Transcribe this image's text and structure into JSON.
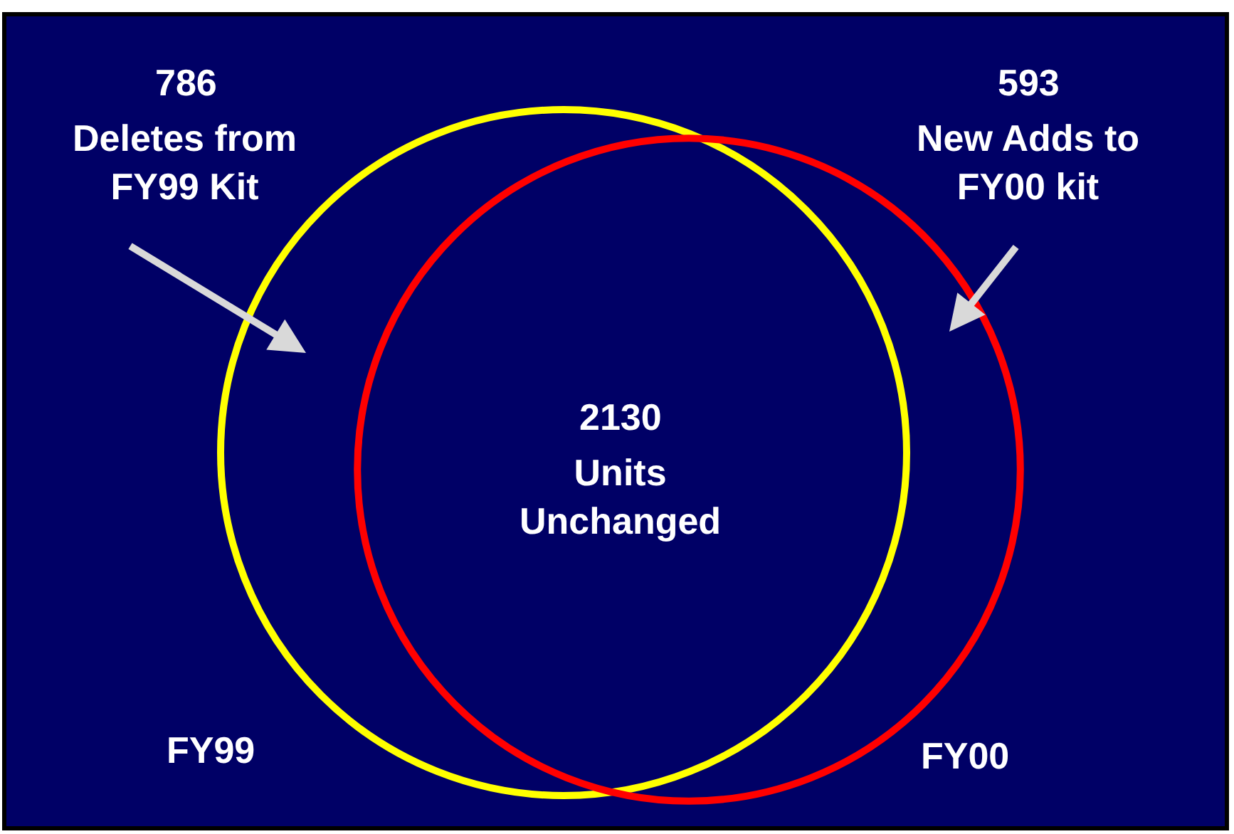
{
  "chart_data": {
    "type": "other",
    "categories": [
      "Deletes from FY99 Kit",
      "Units Unchanged",
      "New Adds to FY00 kit"
    ],
    "values": [
      786,
      2130,
      593
    ],
    "data_labels": true,
    "annotations": [
      "FY99",
      "FY00"
    ]
  }
}
